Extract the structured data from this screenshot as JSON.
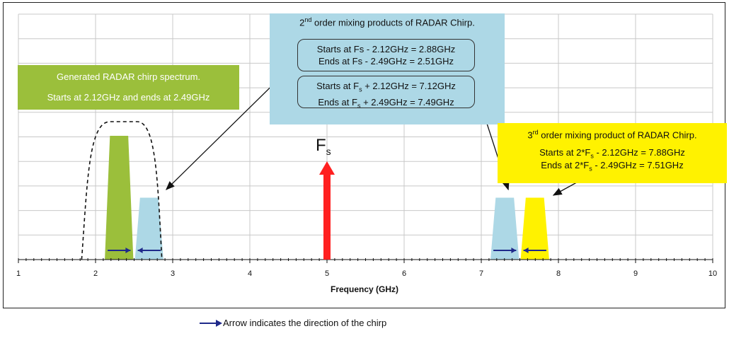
{
  "chart_data": {
    "type": "spectrum",
    "xlabel": "Frequency (GHz)",
    "xlim": [
      1,
      10
    ],
    "x_ticks": [
      "1",
      "2",
      "3",
      "4",
      "5",
      "6",
      "7",
      "8",
      "9",
      "10"
    ],
    "grid": true,
    "spectrum_blocks": [
      {
        "name": "generated-chirp",
        "x_start": 2.12,
        "x_end": 2.49,
        "relative_height": 1.0,
        "color": "#9bbf3b",
        "chirp_direction": "up"
      },
      {
        "name": "2nd-order-lower",
        "x_start": 2.51,
        "x_end": 2.88,
        "relative_height": 0.5,
        "color": "#add8e6",
        "chirp_direction": "down"
      },
      {
        "name": "2nd-order-upper",
        "x_start": 7.12,
        "x_end": 7.49,
        "relative_height": 0.5,
        "color": "#add8e6",
        "chirp_direction": "up"
      },
      {
        "name": "3rd-order",
        "x_start": 7.51,
        "x_end": 7.88,
        "relative_height": 0.5,
        "color": "#fff200",
        "chirp_direction": "down"
      }
    ],
    "sampling_line": {
      "x": 5,
      "color": "#ff2020"
    }
  },
  "fs_label": {
    "main": "F",
    "sub": "s"
  },
  "green_box": {
    "line1": "Generated RADAR chirp spectrum.",
    "line2": "Starts at 2.12GHz and ends at 2.49GHz"
  },
  "blue_box": {
    "title_sup": "nd",
    "title_pre": "2",
    "title_post": " order mixing products of RADAR Chirp.",
    "p1_line1": "Starts at Fs - 2.12GHz = 2.88GHz",
    "p1_line2": "Ends at Fs - 2.49GHz = 2.51GHz",
    "p2_line1_a": "Starts at F",
    "p2_line1_sub": "s",
    "p2_line1_b": " + 2.12GHz = 7.12GHz",
    "p2_line2_a": "Ends at F",
    "p2_line2_sub": "s",
    "p2_line2_b": " + 2.49GHz = 7.49GHz"
  },
  "yellow_box": {
    "title_pre": "3",
    "title_sup": "rd",
    "title_post": " order mixing product of RADAR Chirp.",
    "l1_a": "Starts at 2*F",
    "l1_sub": "s",
    "l1_b": " - 2.12GHz = 7.88GHz",
    "l2_a": "Ends at 2*F",
    "l2_sub": "s",
    "l2_b": " - 2.49GHz = 7.51GHz"
  },
  "legend": {
    "text": "Arrow indicates the direction of the chirp",
    "arrow_color": "#1f2a8a"
  }
}
